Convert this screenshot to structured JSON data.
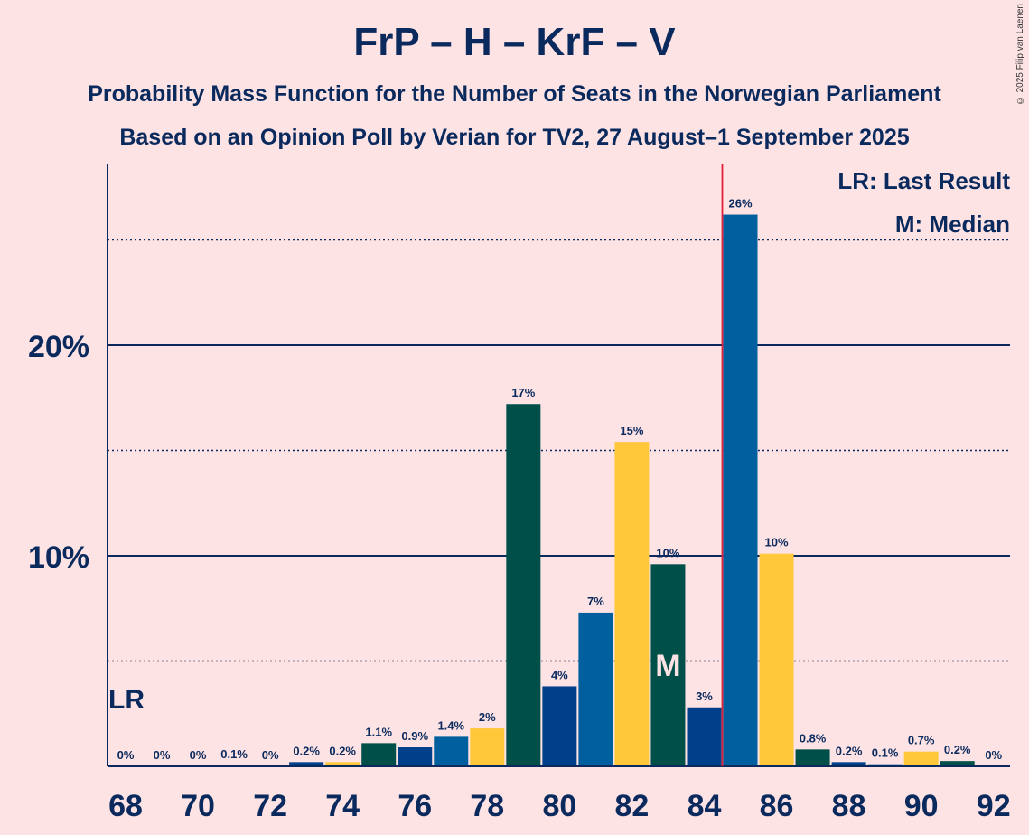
{
  "title": "FrP – H – KrF – V",
  "subtitle1": "Probability Mass Function for the Number of Seats in the Norwegian Parliament",
  "subtitle2": "Based on an Opinion Poll by Verian for TV2, 27 August–1 September 2025",
  "copyright": "© 2025 Filip van Laenen",
  "legend": {
    "last_result": "LR: Last Result",
    "median": "M: Median"
  },
  "markers": {
    "last_result_label": "LR",
    "median_label": "M",
    "last_result_seat": 68,
    "median_seat": 83,
    "majority_line_seat": 84.5
  },
  "colors": {
    "background": "#FDE3E4",
    "text": "#0A2A5E",
    "majority_line": "#E0203A",
    "party_colors": [
      "#005F9E",
      "#FFC83A",
      "#004F48",
      "#003F8A"
    ]
  },
  "chart_data": {
    "type": "bar",
    "xlabel": "",
    "ylabel": "",
    "ylim": [
      0,
      28
    ],
    "y_ticks": [
      {
        "value": 10,
        "label": "10%"
      },
      {
        "value": 20,
        "label": "20%"
      }
    ],
    "x_tick_labels": [
      "68",
      "70",
      "72",
      "74",
      "76",
      "78",
      "80",
      "82",
      "84",
      "86",
      "88",
      "90",
      "92"
    ],
    "seats": [
      68,
      69,
      70,
      71,
      72,
      73,
      74,
      75,
      76,
      77,
      78,
      79,
      80,
      81,
      82,
      83,
      84,
      85,
      86,
      87,
      88,
      89,
      90,
      91,
      92
    ],
    "values": [
      0,
      0,
      0,
      0.05,
      0,
      0.2,
      0.2,
      1.1,
      0.9,
      1.4,
      1.8,
      17.2,
      3.8,
      7.3,
      15.4,
      9.6,
      2.8,
      26.2,
      10.1,
      0.8,
      0.2,
      0.1,
      0.7,
      0.25,
      0
    ],
    "labels": [
      "0%",
      "0%",
      "0%",
      "0.1%",
      "0%",
      "0.2%",
      "0.2%",
      "1.1%",
      "0.9%",
      "1.4%",
      "2%",
      "17%",
      "4%",
      "7%",
      "15%",
      "10%",
      "3%",
      "26%",
      "10%",
      "0.8%",
      "0.2%",
      "0.1%",
      "0.7%",
      "0.2%",
      "0%"
    ],
    "bar_colors": [
      "#005F9E",
      "#FFC83A",
      "#004F48",
      "#003F8A",
      "#005F9E",
      "#003F8A",
      "#FFC83A",
      "#004F48",
      "#003F8A",
      "#005F9E",
      "#FFC83A",
      "#004F48",
      "#003F8A",
      "#005F9E",
      "#FFC83A",
      "#004F48",
      "#003F8A",
      "#005F9E",
      "#FFC83A",
      "#004F48",
      "#003F8A",
      "#005F9E",
      "#FFC83A",
      "#004F48",
      "#003F8A"
    ]
  }
}
